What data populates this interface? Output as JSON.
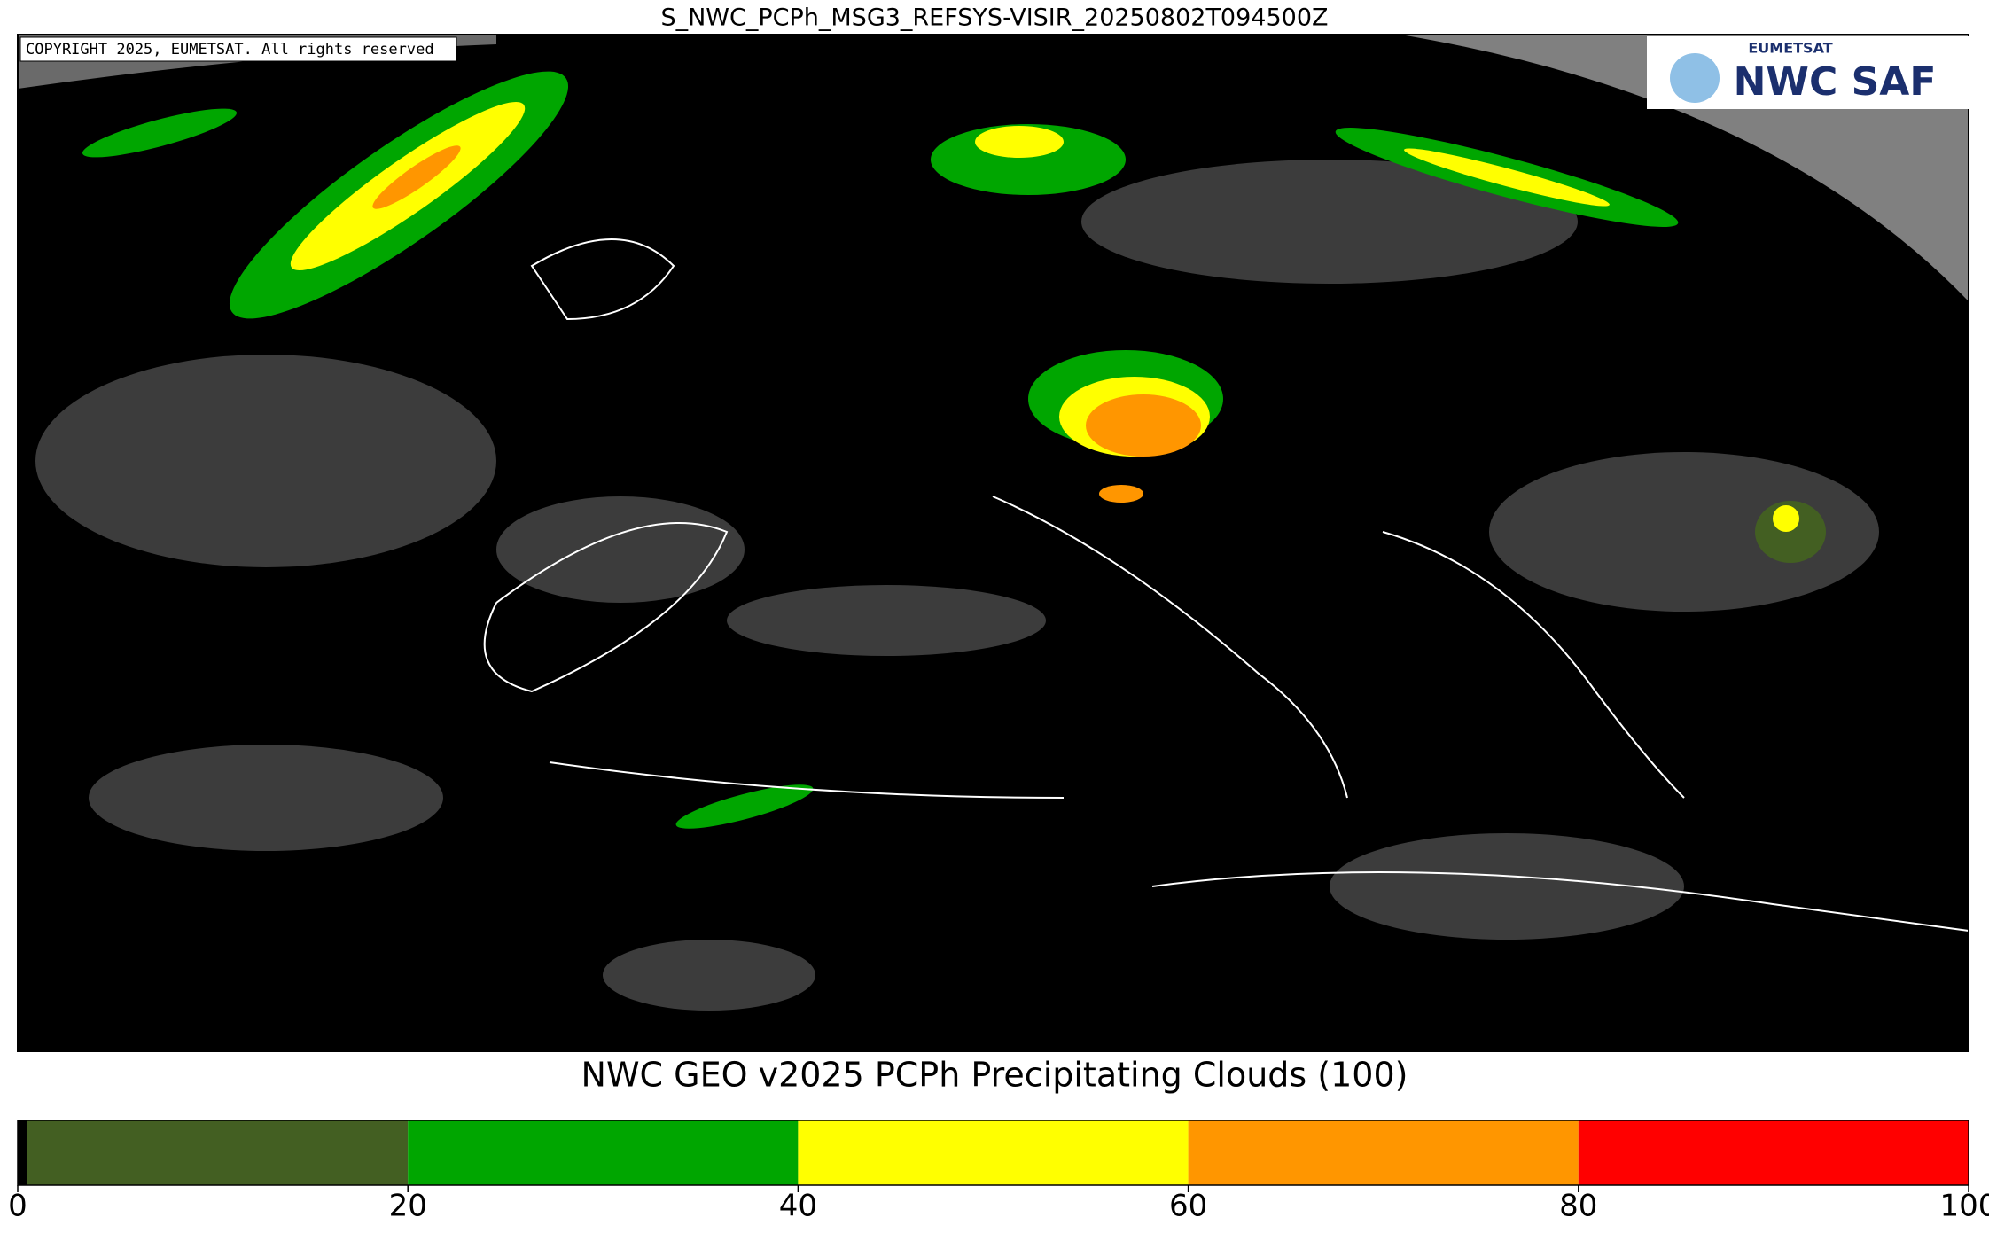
{
  "header": {
    "title": "S_NWC_PCPh_MSG3_REFSYS-VISIR_20250802T094500Z"
  },
  "map": {
    "copyright": "COPYRIGHT 2025, EUMETSAT. All rights reserved",
    "logo": {
      "top": "EUMETSAT",
      "main": "NWC SAF"
    }
  },
  "chart_data": {
    "type": "colorbar",
    "title": "NWC GEO v2025 PCPh Precipitating Clouds (100)",
    "bins": [
      0,
      0.5,
      20,
      40,
      60,
      80,
      100
    ],
    "colors": [
      "#000000",
      "#435f22",
      "#00a600",
      "#ffff00",
      "#ff9600",
      "#ff0000"
    ],
    "xlim": [
      0,
      100
    ],
    "xticks": [
      0,
      20,
      40,
      60,
      80,
      100
    ]
  }
}
